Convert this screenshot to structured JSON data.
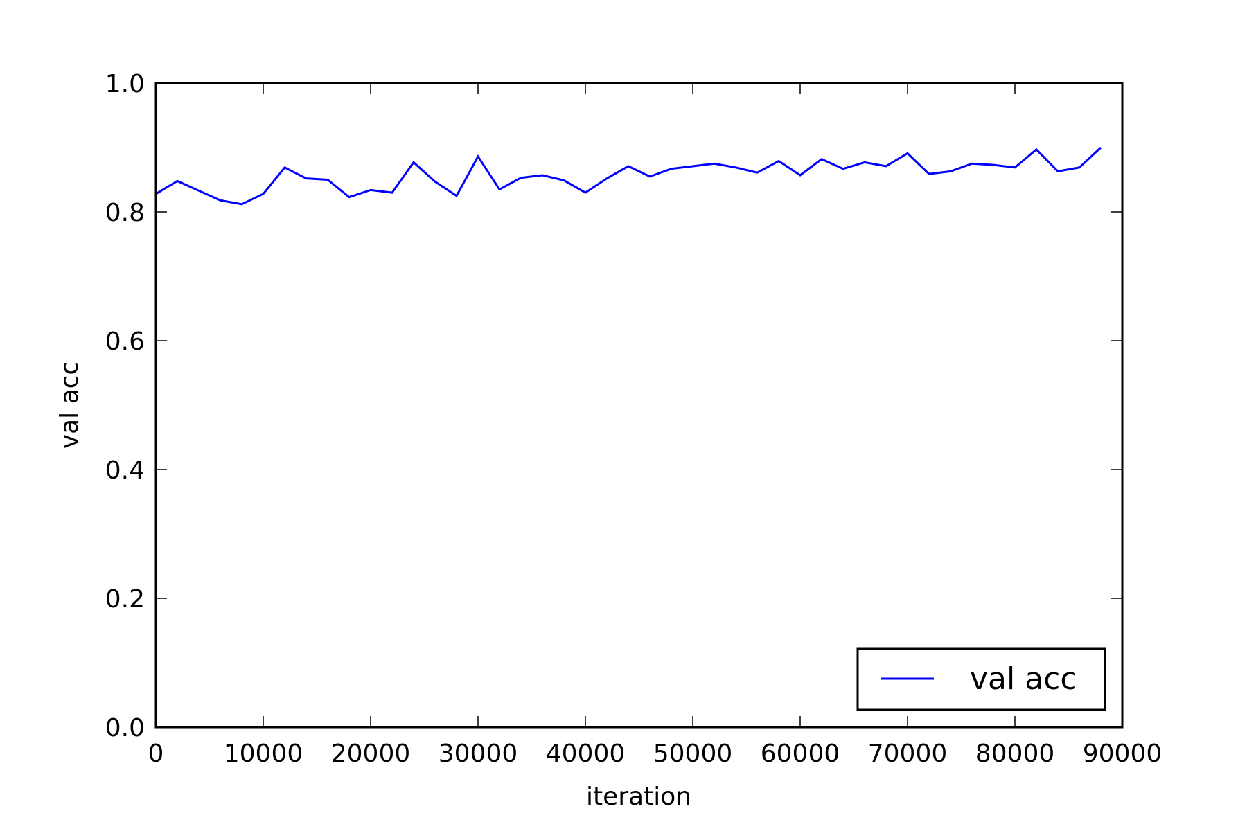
{
  "chart_data": {
    "type": "line",
    "title": "",
    "xlabel": "iteration",
    "ylabel": "val acc",
    "xlim": [
      0,
      90000
    ],
    "ylim": [
      0.0,
      1.0
    ],
    "xticks": [
      0,
      10000,
      20000,
      30000,
      40000,
      50000,
      60000,
      70000,
      80000,
      90000
    ],
    "xtick_labels": [
      "0",
      "10000",
      "20000",
      "30000",
      "40000",
      "50000",
      "60000",
      "70000",
      "80000",
      "90000"
    ],
    "yticks": [
      0.0,
      0.2,
      0.4,
      0.6,
      0.8,
      1.0
    ],
    "ytick_labels": [
      "0.0",
      "0.2",
      "0.4",
      "0.6",
      "0.8",
      "1.0"
    ],
    "grid": false,
    "legend_position": "lower-right",
    "series": [
      {
        "name": "val acc",
        "color": "#0000ff",
        "x": [
          0,
          2000,
          4000,
          6000,
          8000,
          10000,
          12000,
          14000,
          16000,
          18000,
          20000,
          22000,
          24000,
          26000,
          28000,
          30000,
          32000,
          34000,
          36000,
          38000,
          40000,
          42000,
          44000,
          46000,
          48000,
          50000,
          52000,
          54000,
          56000,
          58000,
          60000,
          62000,
          64000,
          66000,
          68000,
          70000,
          72000,
          74000,
          76000,
          78000,
          80000,
          82000,
          84000,
          86000,
          88000
        ],
        "values": [
          0.828,
          0.848,
          0.833,
          0.818,
          0.812,
          0.828,
          0.869,
          0.852,
          0.85,
          0.823,
          0.834,
          0.83,
          0.877,
          0.847,
          0.825,
          0.886,
          0.835,
          0.853,
          0.857,
          0.849,
          0.83,
          0.852,
          0.871,
          0.855,
          0.867,
          0.871,
          0.875,
          0.869,
          0.861,
          0.879,
          0.857,
          0.882,
          0.867,
          0.877,
          0.871,
          0.891,
          0.859,
          0.863,
          0.875,
          0.873,
          0.869,
          0.897,
          0.863,
          0.869,
          0.9
        ]
      }
    ]
  }
}
